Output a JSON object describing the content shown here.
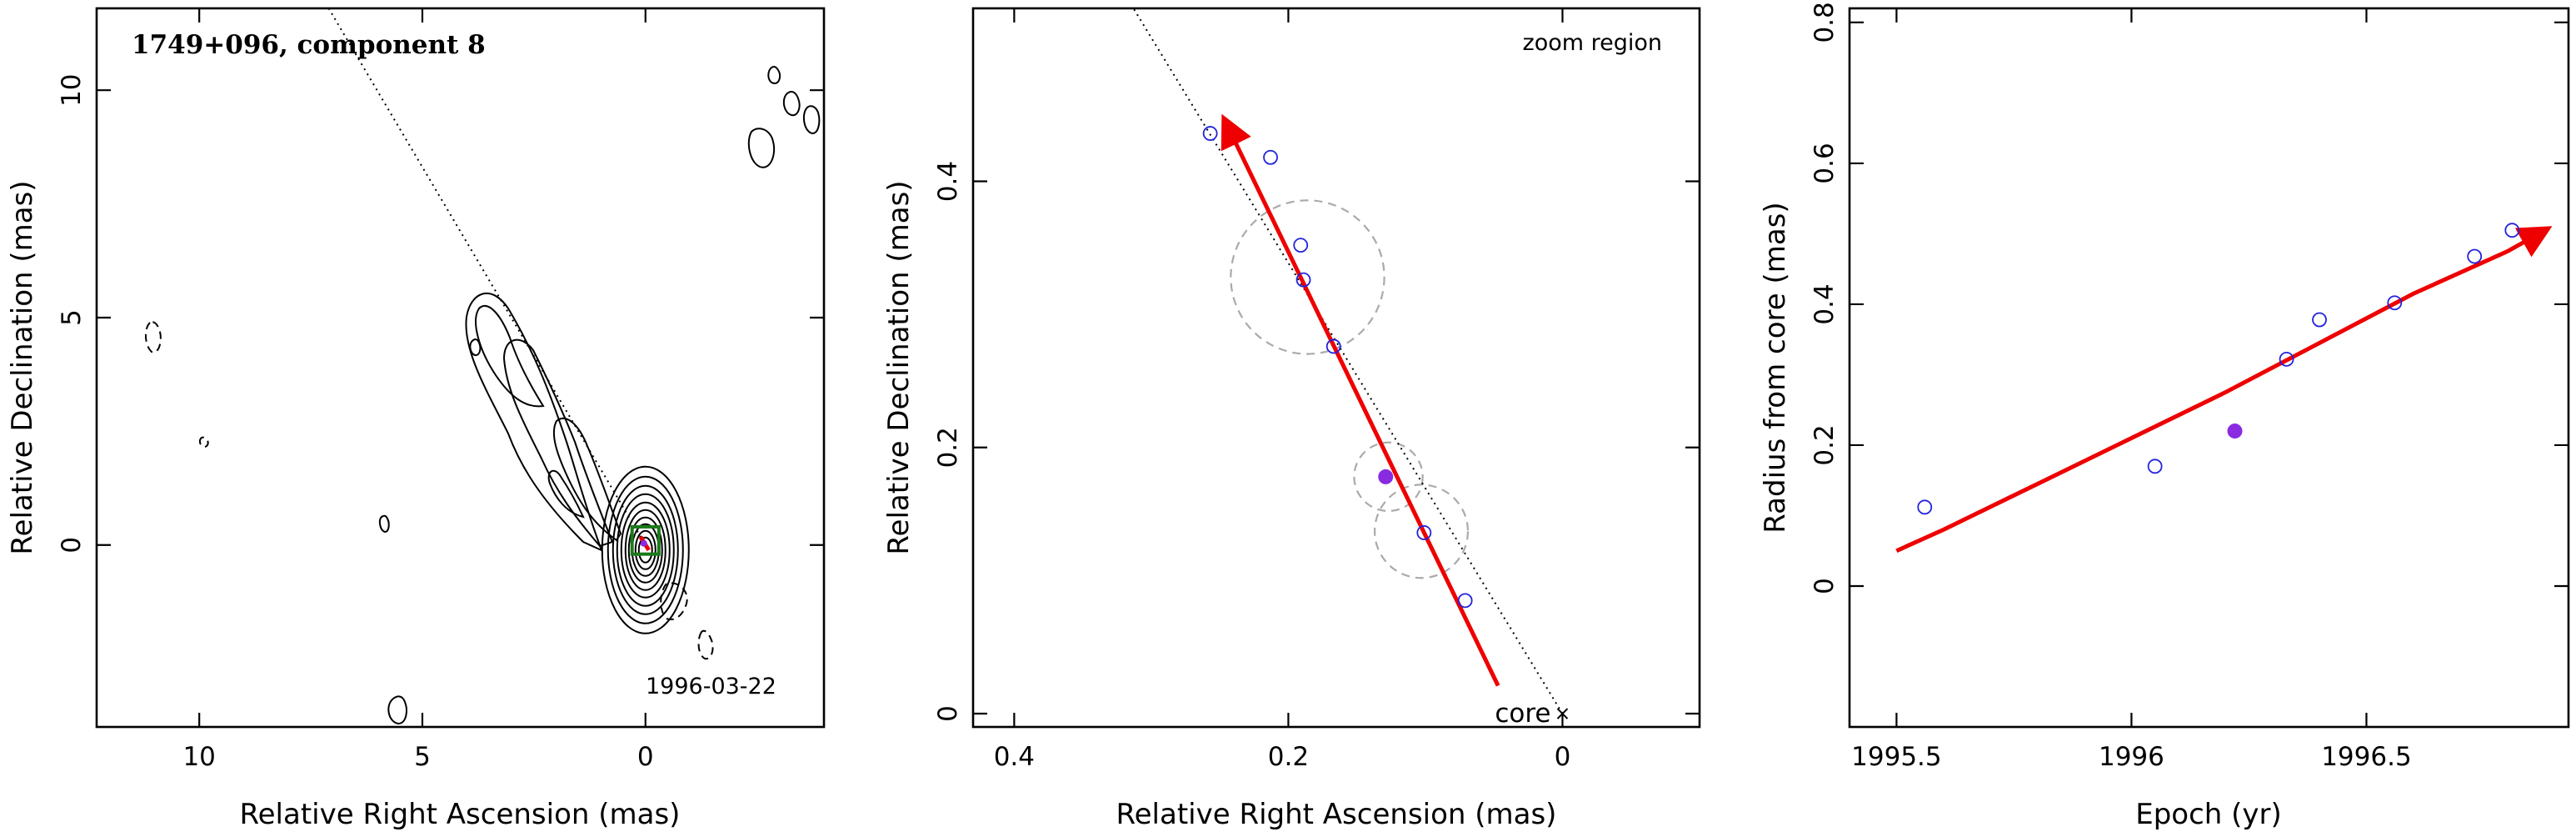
{
  "chart_data": [
    {
      "type": "contour",
      "title": "1749+096, component 8",
      "epoch_label": "1996-03-22",
      "xlabel": "Relative Right Ascension (mas)",
      "ylabel": "Relative Declination (mas)",
      "xlim": [
        12.3,
        -4.0
      ],
      "ylim": [
        -4.0,
        11.8
      ],
      "xticks": [
        10,
        5,
        0
      ],
      "xtick_labels": [
        "10",
        "5",
        "0"
      ],
      "yticks": [
        0,
        5,
        10
      ],
      "ytick_labels": [
        "0",
        "5",
        "10"
      ],
      "jet_axis": [
        [
          7.1,
          11.8
        ],
        [
          0.0,
          0.0
        ]
      ],
      "core_position": [
        0.0,
        0.0
      ],
      "zoom_box": {
        "x": [
          0.3,
          -0.3
        ],
        "y": [
          -0.2,
          0.4
        ]
      },
      "colors": {
        "contour": "#000000",
        "zoom_box": "#1a7a1a",
        "track": "#ee0000"
      }
    },
    {
      "type": "scatter",
      "title": "zoom region",
      "core_label": "core",
      "xlabel": "Relative Right Ascension (mas)",
      "ylabel": "Relative Declination (mas)",
      "xlim": [
        0.43,
        -0.1
      ],
      "ylim": [
        -0.01,
        0.53
      ],
      "xticks": [
        0.4,
        0.2,
        0
      ],
      "xtick_labels": [
        "0.4",
        "0.2",
        "0"
      ],
      "yticks": [
        0,
        0.2,
        0.4
      ],
      "ytick_labels": [
        "0",
        "0.2",
        "0.4"
      ],
      "points": [
        {
          "x": 0.257,
          "y": 0.436
        },
        {
          "x": 0.213,
          "y": 0.418
        },
        {
          "x": 0.191,
          "y": 0.352
        },
        {
          "x": 0.189,
          "y": 0.326
        },
        {
          "x": 0.167,
          "y": 0.276
        },
        {
          "x": 0.101,
          "y": 0.136
        },
        {
          "x": 0.071,
          "y": 0.085
        }
      ],
      "highlight_point": {
        "x": 0.129,
        "y": 0.178
      },
      "uncertainty_circles": [
        {
          "x": 0.186,
          "y": 0.328,
          "r": 0.056
        },
        {
          "x": 0.127,
          "y": 0.178,
          "r": 0.025
        },
        {
          "x": 0.103,
          "y": 0.137,
          "r": 0.034
        }
      ],
      "jet_axis": [
        [
          0.0,
          0.0
        ],
        [
          0.313,
          0.53
        ]
      ],
      "motion_vector": {
        "from": [
          0.047,
          0.021
        ],
        "to": [
          0.246,
          0.445
        ]
      },
      "colors": {
        "points": "#2222dd",
        "highlight": "#8a2be2",
        "vector": "#ee0000",
        "circles": "#aaaaaa"
      }
    },
    {
      "type": "scatter",
      "xlabel": "Epoch (yr)",
      "ylabel": "Radius from core (mas)",
      "xlim": [
        1995.4,
        1996.93
      ],
      "ylim": [
        -0.2,
        0.82
      ],
      "xticks": [
        1995.5,
        1996,
        1996.5
      ],
      "xtick_labels": [
        "1995.5",
        "1996",
        "1996.5"
      ],
      "yticks": [
        0,
        0.2,
        0.4,
        0.6,
        0.8
      ],
      "ytick_labels": [
        "0",
        "0.2",
        "0.4",
        "0.6",
        "0.8"
      ],
      "points": [
        {
          "x": 1995.56,
          "y": 0.112
        },
        {
          "x": 1996.05,
          "y": 0.17
        },
        {
          "x": 1996.33,
          "y": 0.322
        },
        {
          "x": 1996.4,
          "y": 0.378
        },
        {
          "x": 1996.56,
          "y": 0.402
        },
        {
          "x": 1996.73,
          "y": 0.468
        },
        {
          "x": 1996.81,
          "y": 0.505
        }
      ],
      "highlight_point": {
        "x": 1996.22,
        "y": 0.22
      },
      "fit_curve": [
        {
          "x": 1995.5,
          "y": 0.05
        },
        {
          "x": 1995.6,
          "y": 0.08
        },
        {
          "x": 1995.8,
          "y": 0.145
        },
        {
          "x": 1996.0,
          "y": 0.21
        },
        {
          "x": 1996.2,
          "y": 0.275
        },
        {
          "x": 1996.4,
          "y": 0.345
        },
        {
          "x": 1996.6,
          "y": 0.415
        },
        {
          "x": 1996.8,
          "y": 0.475
        },
        {
          "x": 1996.88,
          "y": 0.505
        }
      ],
      "colors": {
        "points": "#2222dd",
        "highlight": "#8a2be2",
        "fit": "#ee0000"
      }
    }
  ]
}
